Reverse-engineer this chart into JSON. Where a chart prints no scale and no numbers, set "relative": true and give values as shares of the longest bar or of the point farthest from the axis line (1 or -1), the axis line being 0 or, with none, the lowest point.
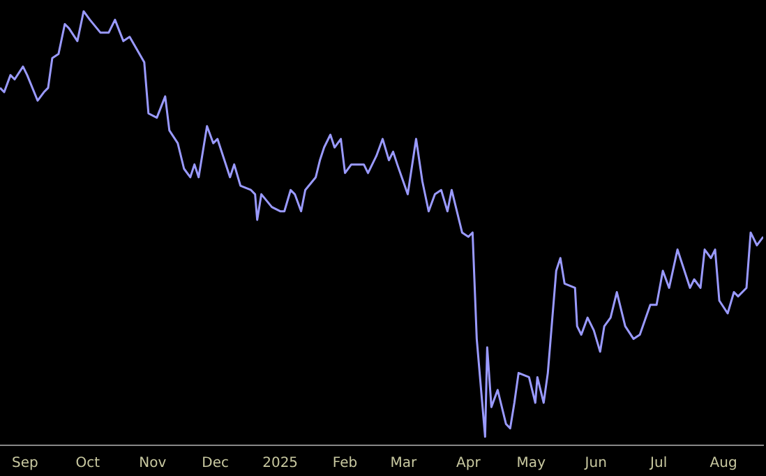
{
  "chart_data": {
    "type": "line",
    "relative": true,
    "color": "#9a9aff",
    "x": [
      "2024-08-20",
      "2024-08-22",
      "2024-08-25",
      "2024-08-27",
      "2024-08-31",
      "2024-09-02",
      "2024-09-07",
      "2024-09-10",
      "2024-09-12",
      "2024-09-14",
      "2024-09-17",
      "2024-09-20",
      "2024-09-22",
      "2024-09-26",
      "2024-09-29",
      "2024-10-02",
      "2024-10-07",
      "2024-10-11",
      "2024-10-14",
      "2024-10-18",
      "2024-10-21",
      "2024-10-28",
      "2024-10-30",
      "2024-11-03",
      "2024-11-07",
      "2024-11-09",
      "2024-11-13",
      "2024-11-16",
      "2024-11-19",
      "2024-11-21",
      "2024-11-23",
      "2024-11-27",
      "2024-11-30",
      "2024-12-02",
      "2024-12-08",
      "2024-12-10",
      "2024-12-13",
      "2024-12-18",
      "2024-12-20",
      "2024-12-21",
      "2024-12-23",
      "2024-12-28",
      "2025-01-01",
      "2025-01-03",
      "2025-01-06",
      "2025-01-08",
      "2025-01-11",
      "2025-01-13",
      "2025-01-18",
      "2025-01-20",
      "2025-01-22",
      "2025-01-25",
      "2025-01-27",
      "2025-01-30",
      "2025-02-01",
      "2025-02-04",
      "2025-02-10",
      "2025-02-12",
      "2025-02-16",
      "2025-02-19",
      "2025-02-22",
      "2025-02-24",
      "2025-02-26",
      "2025-03-03",
      "2025-03-07",
      "2025-03-10",
      "2025-03-13",
      "2025-03-16",
      "2025-03-19",
      "2025-03-22",
      "2025-03-24",
      "2025-03-29",
      "2025-04-01",
      "2025-04-03",
      "2025-04-05",
      "2025-04-09",
      "2025-04-10",
      "2025-04-12",
      "2025-04-15",
      "2025-04-19",
      "2025-04-21",
      "2025-04-23",
      "2025-04-25",
      "2025-04-30",
      "2025-05-03",
      "2025-05-04",
      "2025-05-07",
      "2025-05-09",
      "2025-05-13",
      "2025-05-15",
      "2025-05-17",
      "2025-05-22",
      "2025-05-23",
      "2025-05-25",
      "2025-05-28",
      "2025-05-31",
      "2025-06-03",
      "2025-06-05",
      "2025-06-08",
      "2025-06-11",
      "2025-06-15",
      "2025-06-19",
      "2025-06-22",
      "2025-06-27",
      "2025-06-30",
      "2025-07-03",
      "2025-07-06",
      "2025-07-10",
      "2025-07-16",
      "2025-07-18",
      "2025-07-21",
      "2025-07-23",
      "2025-07-26",
      "2025-07-28",
      "2025-07-30",
      "2025-08-03",
      "2025-08-06",
      "2025-08-08",
      "2025-08-12",
      "2025-08-14",
      "2025-08-17",
      "2025-08-20"
    ],
    "values": [
      0.82,
      0.81,
      0.85,
      0.84,
      0.87,
      0.85,
      0.79,
      0.81,
      0.82,
      0.89,
      0.9,
      0.97,
      0.96,
      0.93,
      1.0,
      0.98,
      0.95,
      0.95,
      0.98,
      0.93,
      0.94,
      0.88,
      0.76,
      0.75,
      0.8,
      0.72,
      0.69,
      0.63,
      0.61,
      0.64,
      0.61,
      0.73,
      0.69,
      0.7,
      0.61,
      0.64,
      0.59,
      0.58,
      0.57,
      0.51,
      0.57,
      0.54,
      0.53,
      0.53,
      0.58,
      0.57,
      0.53,
      0.58,
      0.61,
      0.65,
      0.68,
      0.71,
      0.68,
      0.7,
      0.62,
      0.64,
      0.64,
      0.62,
      0.66,
      0.7,
      0.65,
      0.67,
      0.64,
      0.57,
      0.7,
      0.6,
      0.53,
      0.57,
      0.58,
      0.53,
      0.58,
      0.48,
      0.47,
      0.48,
      0.23,
      0,
      0.21,
      0.07,
      0.11,
      0.03,
      0.02,
      0.08,
      0.15,
      0.14,
      0.08,
      0.14,
      0.08,
      0.15,
      0.39,
      0.42,
      0.36,
      0.35,
      0.26,
      0.24,
      0.28,
      0.25,
      0.2,
      0.26,
      0.28,
      0.34,
      0.26,
      0.23,
      0.24,
      0.31,
      0.31,
      0.39,
      0.35,
      0.44,
      0.35,
      0.37,
      0.35,
      0.44,
      0.42,
      0.44,
      0.32,
      0.29,
      0.34,
      0.33,
      0.35,
      0.48,
      0.45,
      0.47
    ],
    "xlim": [
      "2024-08-20",
      "2025-08-20"
    ],
    "xticks": [
      {
        "value": "2024-09-01",
        "label": "Sep"
      },
      {
        "value": "2024-10-01",
        "label": "Oct"
      },
      {
        "value": "2024-11-01",
        "label": "Nov"
      },
      {
        "value": "2024-12-01",
        "label": "Dec"
      },
      {
        "value": "2025-01-01",
        "label": "2025"
      },
      {
        "value": "2025-02-01",
        "label": "Feb"
      },
      {
        "value": "2025-03-01",
        "label": "Mar"
      },
      {
        "value": "2025-04-01",
        "label": "Apr"
      },
      {
        "value": "2025-05-01",
        "label": "May"
      },
      {
        "value": "2025-06-01",
        "label": "Jun"
      },
      {
        "value": "2025-07-01",
        "label": "Jul"
      },
      {
        "value": "2025-08-01",
        "label": "Aug"
      }
    ],
    "grid": false,
    "legend": false
  }
}
